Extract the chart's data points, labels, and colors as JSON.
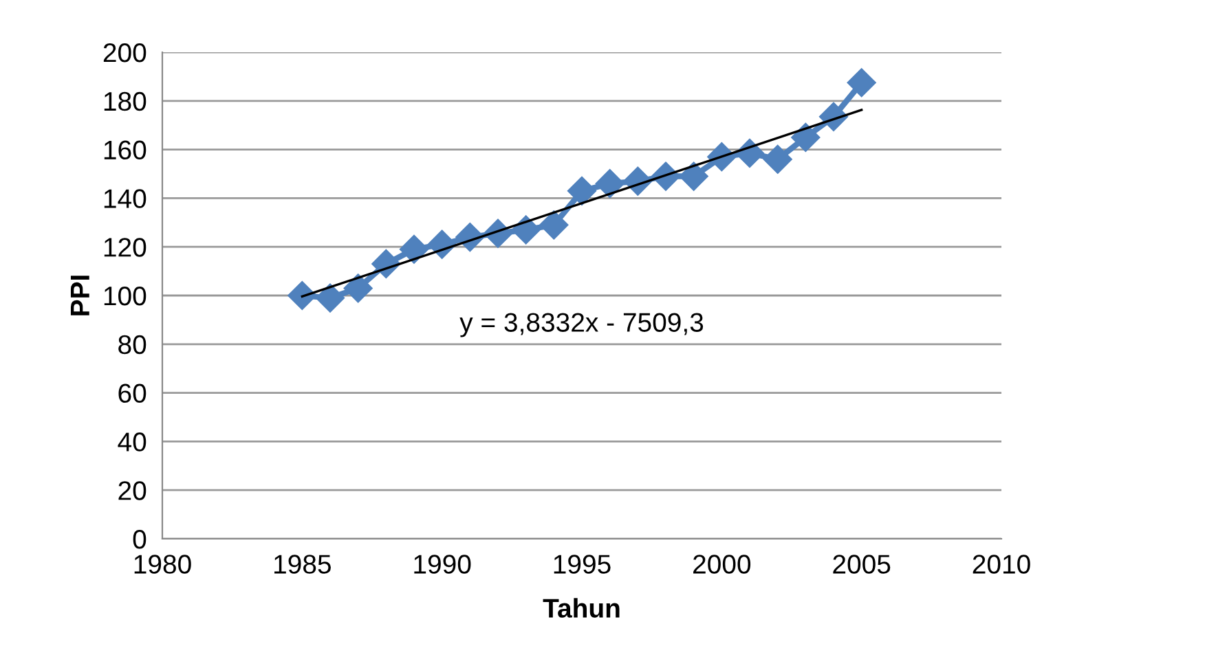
{
  "chart_data": {
    "type": "line",
    "xlabel": "Tahun",
    "ylabel": "PPI",
    "xlim": [
      1980,
      2010
    ],
    "xticks": [
      1980,
      1985,
      1990,
      1995,
      2000,
      2005,
      2010
    ],
    "ylim": [
      0,
      200
    ],
    "yticks": [
      0,
      20,
      40,
      60,
      80,
      100,
      120,
      140,
      160,
      180,
      200
    ],
    "grid": "y",
    "legend": false,
    "annotations": [
      "y = 3,8332x - 7509,3"
    ],
    "series": [
      {
        "color": "#4f81bd",
        "marker": "diamond",
        "x": [
          1985,
          1986,
          1987,
          1988,
          1989,
          1990,
          1991,
          1992,
          1993,
          1994,
          1995,
          1996,
          1997,
          1998,
          1999,
          2000,
          2001,
          2002,
          2003,
          2004,
          2005
        ],
        "values": [
          100,
          99,
          103,
          113,
          119,
          121,
          124,
          125.5,
          127,
          129,
          143,
          146,
          147,
          149,
          149,
          157,
          158.5,
          156,
          165,
          173.5,
          187.5
        ]
      },
      {
        "color": "#000000",
        "marker": "none",
        "x": [
          1985,
          2005
        ],
        "values": [
          99.6,
          176.3
        ]
      }
    ]
  }
}
